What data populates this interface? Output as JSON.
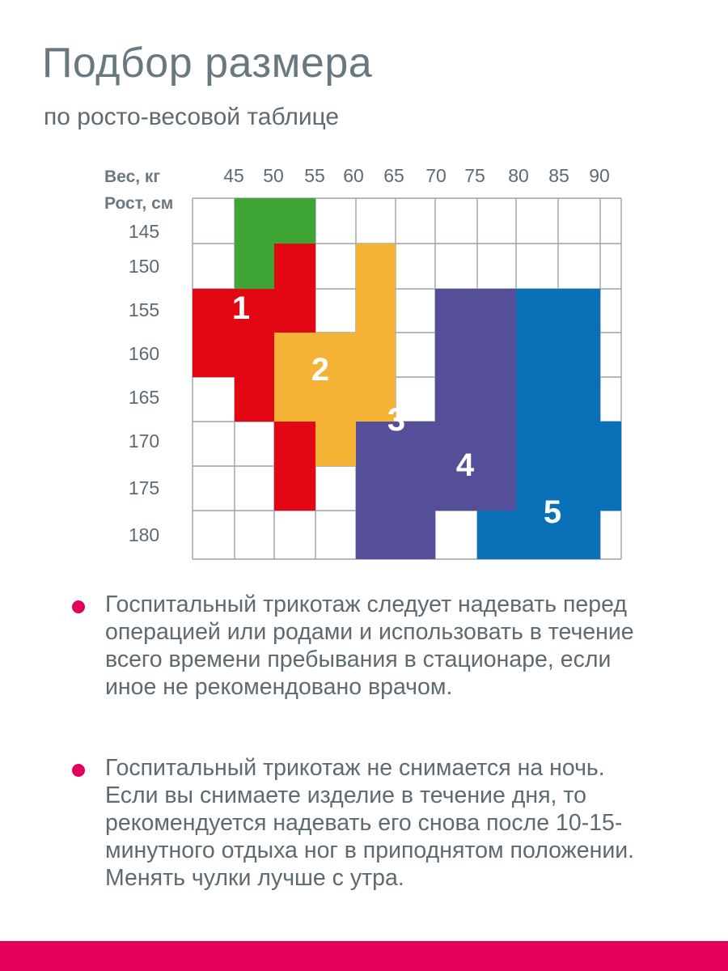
{
  "title": "Подбор размера",
  "subtitle": "по росто-весовой таблице",
  "colors": {
    "accent": "#e2005a",
    "grid": "#9aa4aa",
    "size1": "#3fa535",
    "size2": "#e30613",
    "size3": "#f5b335",
    "size4": "#554e99",
    "size5": "#0a70b8"
  },
  "chart_data": {
    "type": "table",
    "weight_label": "Вес, кг",
    "height_label": "Рост, см",
    "weights": [
      "45",
      "50",
      "55",
      "60",
      "65",
      "70",
      "75",
      "80",
      "85",
      "90"
    ],
    "heights": [
      "145",
      "150",
      "155",
      "160",
      "165",
      "170",
      "175",
      "180"
    ],
    "sizes": [
      {
        "label": "1",
        "color": "#3fa535"
      },
      {
        "label": "2",
        "color": "#e30613"
      },
      {
        "label": "3",
        "color": "#f5b335"
      },
      {
        "label": "4",
        "color": "#554e99"
      },
      {
        "label": "5",
        "color": "#0a70b8"
      }
    ]
  },
  "notes": [
    "Госпитальный трикотаж следует надевать перед операцией или родами и использовать в течение всего времени пребывания в стационаре, если иное не рекомендовано врачом.",
    "Госпитальный трикотаж не снимается на ночь. Если вы снимаете изделие в течение дня, то рекомендуется надевать его снова после 10-15-минутного отдыха ног в приподнятом положении. Менять чулки лучше с утра."
  ]
}
